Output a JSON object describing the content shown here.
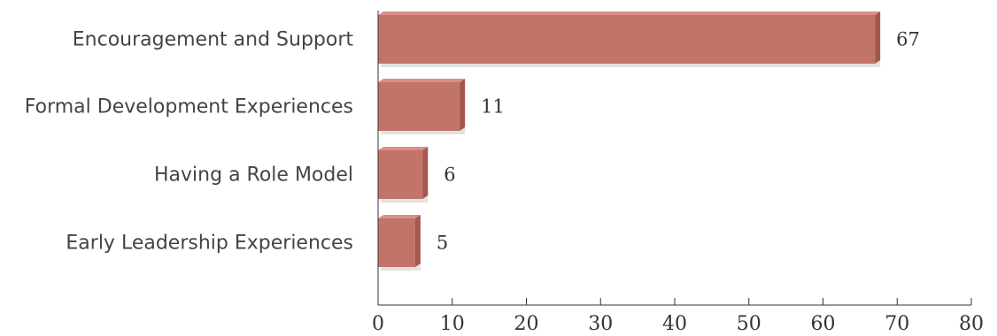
{
  "chart_data": {
    "type": "bar",
    "orientation": "horizontal",
    "categories": [
      "Encouragement and Support",
      "Formal Development Experiences",
      "Having a Role Model",
      "Early Leadership Experiences"
    ],
    "values": [
      67,
      11,
      6,
      5
    ],
    "data_labels": [
      "67",
      "11",
      "6",
      "5"
    ],
    "xlim": [
      0,
      80
    ],
    "xticks": [
      0,
      10,
      20,
      30,
      40,
      50,
      60,
      70,
      80
    ],
    "title": "",
    "xlabel": "",
    "ylabel": "",
    "grid": false,
    "legend": "none",
    "colors": {
      "bar_face": "#c27468",
      "bar_side": "#a4574c",
      "bar_top": "#d8918a",
      "bar_shadow": "#e2e2e2",
      "axis": "#333333"
    }
  }
}
